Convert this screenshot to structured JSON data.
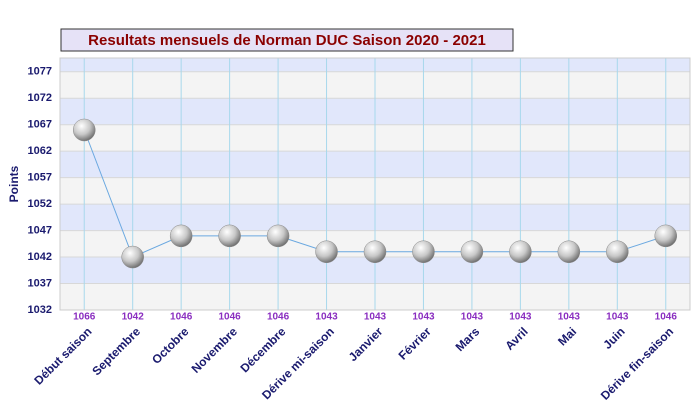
{
  "chart_data": {
    "type": "line",
    "title": "Resultats mensuels de Norman DUC Saison 2020 - 2021",
    "ylabel": "Points",
    "categories": [
      "Début saison",
      "Septembre",
      "Octobre",
      "Novembre",
      "Décembre",
      "Dérive mi-saison",
      "Janvier",
      "Février",
      "Mars",
      "Avril",
      "Mai",
      "Juin",
      "Dérive fin-saison"
    ],
    "values": [
      1066,
      1042,
      1046,
      1046,
      1046,
      1043,
      1043,
      1043,
      1043,
      1043,
      1043,
      1043,
      1046
    ],
    "color": "#6aa8e0",
    "ylim": [
      1032,
      1079.6
    ],
    "yticks": [
      1032,
      1037,
      1042,
      1047,
      1052,
      1057,
      1062,
      1067,
      1072,
      1077
    ],
    "grid": true,
    "band_colors": [
      "#f4f4f4",
      "#e1e7fb"
    ]
  }
}
